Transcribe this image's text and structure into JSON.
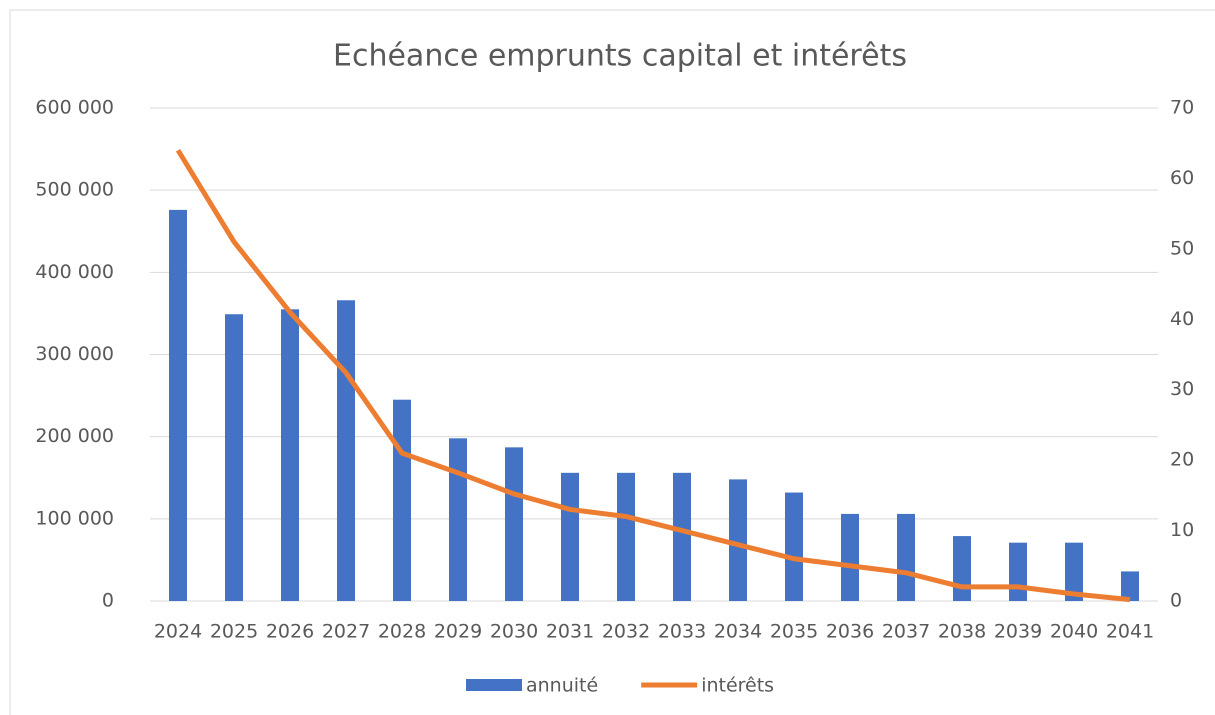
{
  "chart_data": {
    "type": "bar_line",
    "title": "Echéance emprunts capital et intérêts",
    "categories": [
      "2024",
      "2025",
      "2026",
      "2027",
      "2028",
      "2029",
      "2030",
      "2031",
      "2032",
      "2033",
      "2034",
      "2035",
      "2036",
      "2037",
      "2038",
      "2039",
      "2040",
      "2041"
    ],
    "series": [
      {
        "name": "annuité",
        "type": "bar",
        "color": "#4472c4",
        "axis": "y",
        "values": [
          476000,
          349000,
          355000,
          366000,
          245000,
          198000,
          187000,
          156000,
          156000,
          156000,
          148000,
          132000,
          106000,
          106000,
          79000,
          71000,
          71000,
          36000
        ]
      },
      {
        "name": "intérêts",
        "type": "line",
        "color": "#ed7d31",
        "axis": "y2",
        "values": [
          64,
          51,
          41,
          32.4,
          21,
          18.2,
          15.2,
          13,
          12,
          10,
          8,
          6,
          5,
          4,
          2,
          2,
          1,
          0.2
        ]
      }
    ],
    "ylim": [
      0,
      600000
    ],
    "yticks": [
      {
        "value": 0,
        "label": "0"
      },
      {
        "value": 100000,
        "label": "100 000"
      },
      {
        "value": 200000,
        "label": "200 000"
      },
      {
        "value": 300000,
        "label": "300 000"
      },
      {
        "value": 400000,
        "label": "400 000"
      },
      {
        "value": 500000,
        "label": "500 000"
      },
      {
        "value": 600000,
        "label": "600 000"
      }
    ],
    "y2lim": [
      0,
      70
    ],
    "y2ticks": [
      0,
      10,
      20,
      30,
      40,
      50,
      60,
      70
    ],
    "grid": true,
    "legend": "bottom"
  }
}
